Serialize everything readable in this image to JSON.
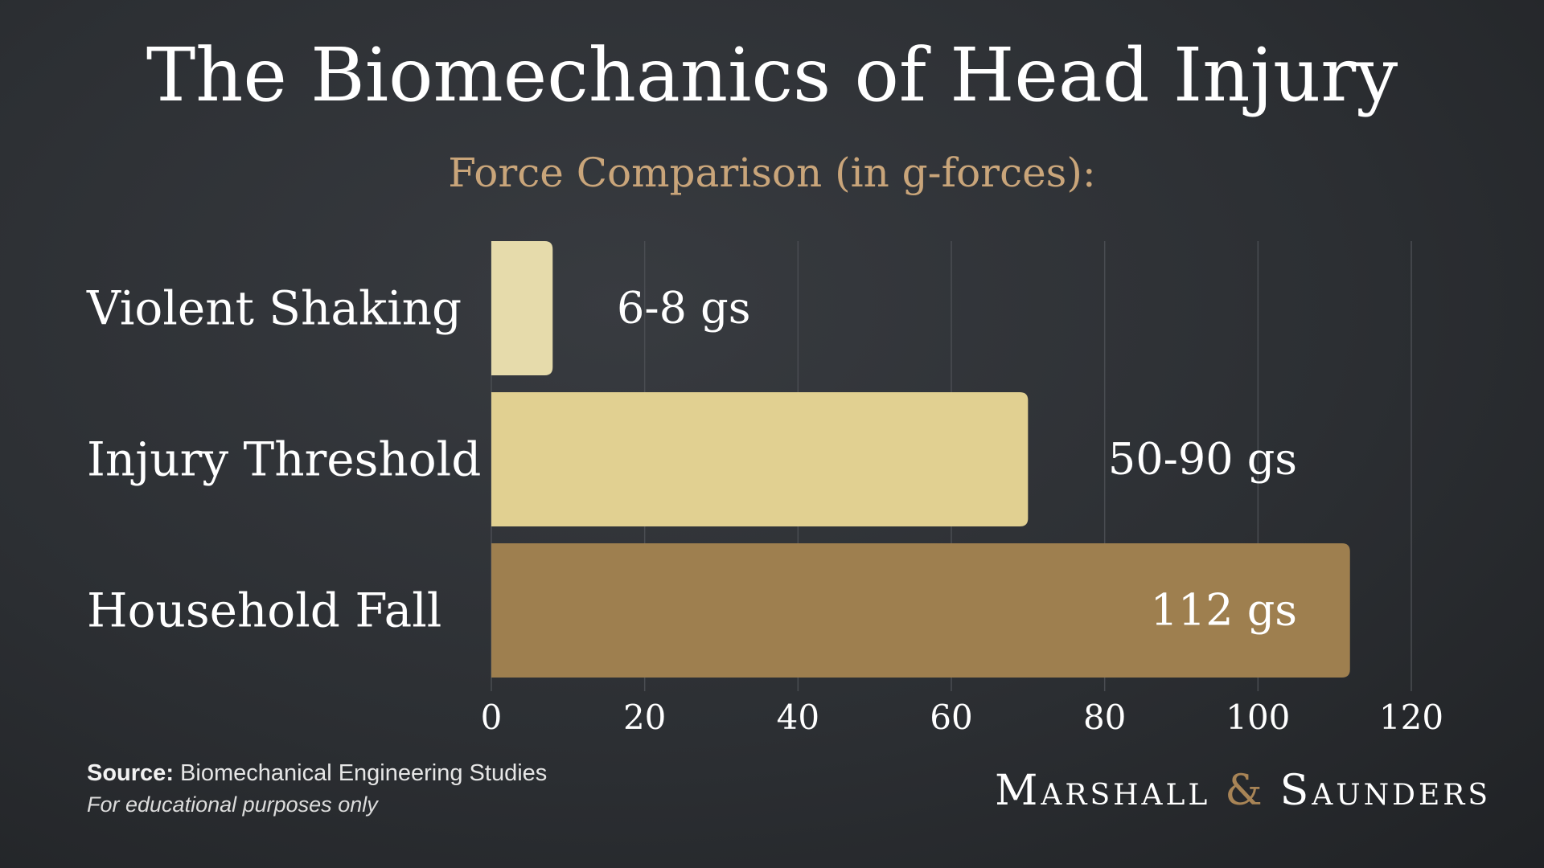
{
  "title": "The Biomechanics of Head Injury",
  "subtitle": "Force Comparison (in g-forces):",
  "colors": {
    "subtitle": "#c9a57a",
    "bar_light": "#e6dbab",
    "bar_mid": "#e1d091",
    "bar_dark": "#9e7f4f",
    "brand_amp": "#a88456",
    "grid": "#4a4d52"
  },
  "chart_data": {
    "type": "bar",
    "orientation": "horizontal",
    "categories": [
      "Violent Shaking",
      "Injury Threshold",
      "Household Fall"
    ],
    "values": [
      8,
      70,
      112
    ],
    "value_labels": [
      "6-8 gs",
      "50-90 gs",
      "112 gs"
    ],
    "xlim": [
      0,
      120
    ],
    "xticks": [
      0,
      20,
      40,
      60,
      80,
      100,
      120
    ],
    "xlabel": "",
    "ylabel": "",
    "grid": true
  },
  "footer": {
    "source_label": "Source:",
    "source_text": "Biomechanical Engineering Studies",
    "note": "For educational purposes only"
  },
  "brand": {
    "name_left": "Marshall",
    "amp": "&",
    "name_right": "Saunders"
  }
}
